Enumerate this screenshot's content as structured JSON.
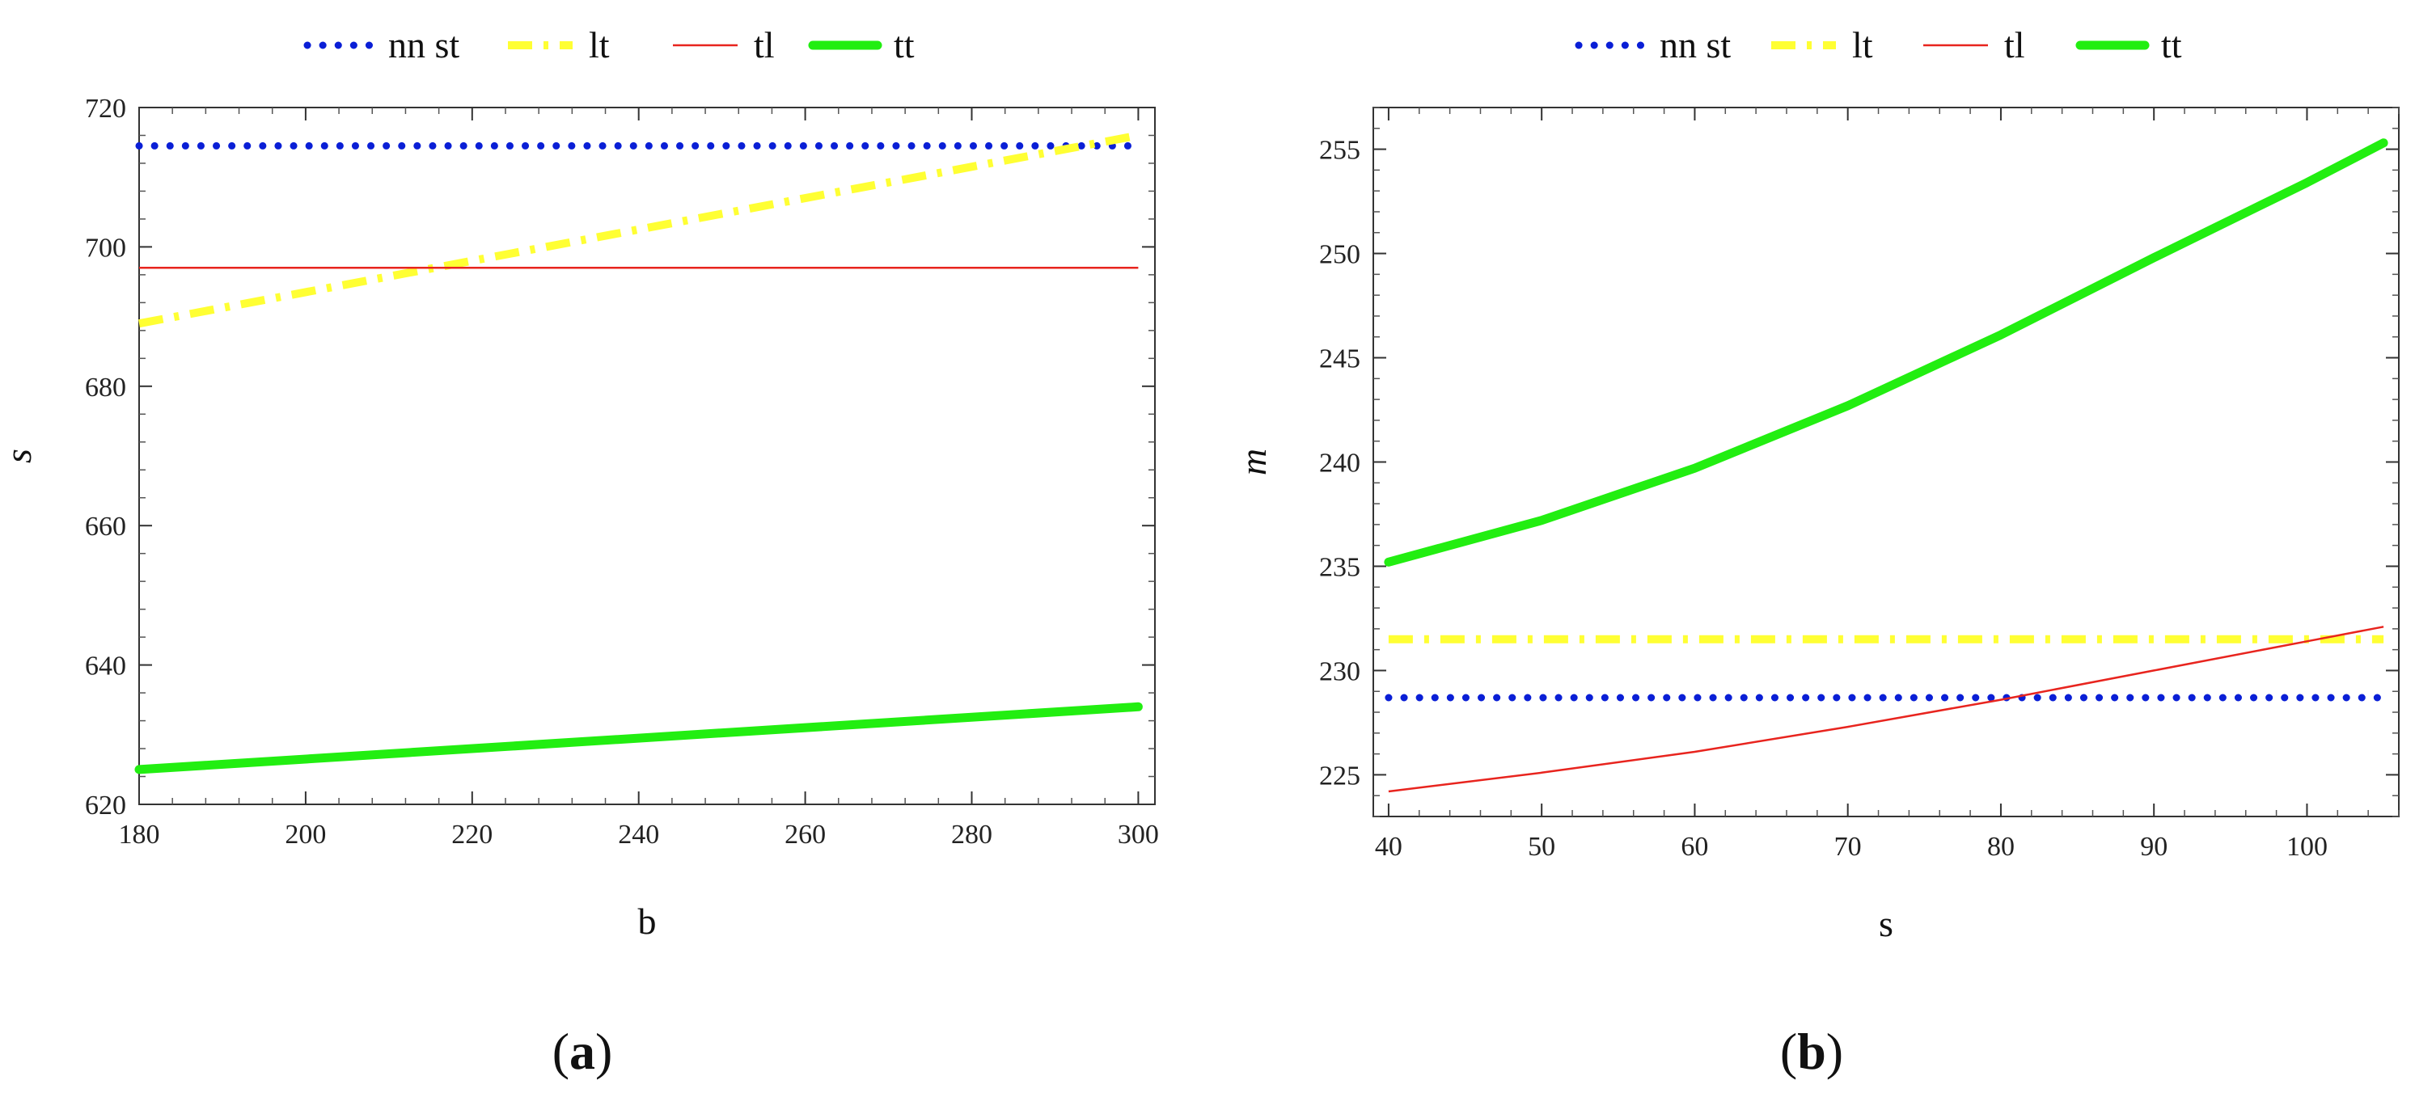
{
  "chart_data": [
    {
      "panel": "a",
      "type": "line",
      "panel_label_open": "(",
      "panel_label_letter": "a",
      "panel_label_close": ")",
      "xlabel": "b",
      "ylabel": "s",
      "xlim": [
        180,
        302
      ],
      "ylim": [
        620,
        720
      ],
      "xticks": [
        180,
        200,
        220,
        240,
        260,
        280,
        300
      ],
      "yticks": [
        620,
        640,
        660,
        680,
        700,
        720
      ],
      "legend_position": "top",
      "series": [
        {
          "name": "nn st",
          "color": "#0a1fd6",
          "style": "dotted",
          "x": [
            180,
            300
          ],
          "y": [
            714.5,
            714.5
          ]
        },
        {
          "name": "lt",
          "color": "#ffff33",
          "style": "dashdot",
          "x": [
            180,
            300
          ],
          "y": [
            689,
            716
          ]
        },
        {
          "name": "tl",
          "color": "#e8241e",
          "style": "thin",
          "x": [
            180,
            300
          ],
          "y": [
            697,
            697
          ]
        },
        {
          "name": "tt",
          "color": "#22ee11",
          "style": "thick",
          "x": [
            180,
            300
          ],
          "y": [
            625,
            634
          ]
        }
      ]
    },
    {
      "panel": "b",
      "type": "line",
      "panel_label_open": "(",
      "panel_label_letter": "b",
      "panel_label_close": ")",
      "xlabel": "s",
      "ylabel": "m",
      "xlim": [
        39,
        106
      ],
      "ylim": [
        223,
        257
      ],
      "xticks": [
        40,
        50,
        60,
        70,
        80,
        90,
        100
      ],
      "yticks": [
        225,
        230,
        235,
        240,
        245,
        250,
        255
      ],
      "legend_position": "top",
      "series": [
        {
          "name": "nn st",
          "color": "#0a1fd6",
          "style": "dotted",
          "x": [
            40,
            105
          ],
          "y": [
            228.7,
            228.7
          ]
        },
        {
          "name": "lt",
          "color": "#ffff33",
          "style": "dashdot",
          "x": [
            40,
            105
          ],
          "y": [
            231.5,
            231.5
          ]
        },
        {
          "name": "tl",
          "color": "#e8241e",
          "style": "thin",
          "x": [
            40,
            50,
            60,
            70,
            80,
            90,
            100,
            105
          ],
          "y": [
            224.2,
            225.1,
            226.1,
            227.3,
            228.6,
            230.0,
            231.4,
            232.1
          ]
        },
        {
          "name": "tt",
          "color": "#22ee11",
          "style": "thick",
          "x": [
            40,
            50,
            60,
            70,
            80,
            90,
            100,
            105
          ],
          "y": [
            235.2,
            237.2,
            239.7,
            242.7,
            246.1,
            249.8,
            253.4,
            255.3
          ]
        }
      ]
    }
  ]
}
